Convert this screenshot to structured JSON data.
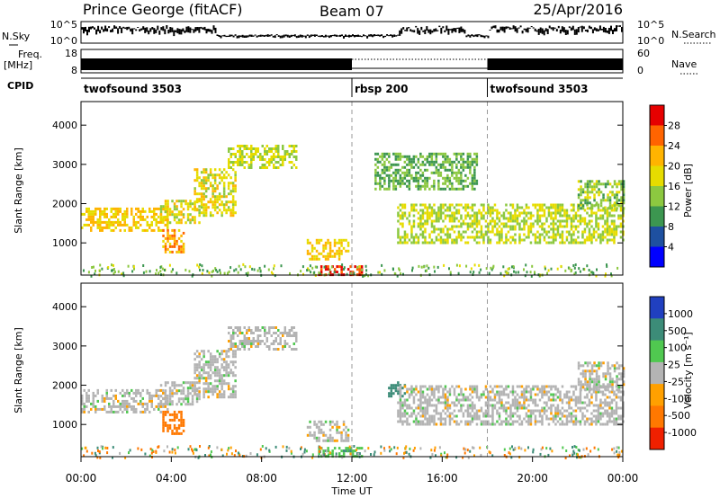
{
  "header": {
    "station": "Prince George (fitACF)",
    "beam": "Beam 07",
    "date": "25/Apr/2016"
  },
  "noise_panel": {
    "left_label": "N.Sky",
    "right_label": "N.Search",
    "left_ticks": [
      "10^5",
      "10^0"
    ],
    "right_ticks": [
      "10^5",
      "10^0"
    ]
  },
  "freq_panel": {
    "left_label_top": "Freq.",
    "left_label_unit": "[MHz]",
    "left_ticks": [
      "18",
      "8"
    ],
    "right_ticks": [
      "60",
      "0"
    ],
    "right_label": "Nave"
  },
  "cpid_panel": {
    "label": "CPID",
    "segments": [
      {
        "name": "twofsound 3503",
        "start_hour": 0,
        "end_hour": 12
      },
      {
        "name": "rbsp 200",
        "start_hour": 12,
        "end_hour": 18
      },
      {
        "name": "twofsound 3503",
        "start_hour": 18,
        "end_hour": 24
      }
    ]
  },
  "power_panel": {
    "ylabel": "Slant Range [km]",
    "colorbar_label": "Power [dB]",
    "colorbar_ticks": [
      "28",
      "24",
      "20",
      "16",
      "12",
      "8",
      "4"
    ],
    "colors": [
      "#e60000",
      "#ff6400",
      "#ffb400",
      "#e6dc00",
      "#8cc840",
      "#3c9650",
      "#1e50a0",
      "#0000ff"
    ]
  },
  "velocity_panel": {
    "ylabel": "Slant Range [km]",
    "colorbar_label": "Velocity [m s⁻¹]",
    "colorbar_ticks": [
      "1000",
      "500",
      "100",
      "25",
      "-25",
      "-100",
      "-500",
      "-1000"
    ],
    "colors": [
      "#2040c0",
      "#3c8c78",
      "#50c850",
      "#b4b4b4",
      "#ffa000",
      "#ff7800",
      "#f02000"
    ]
  },
  "x_axis": {
    "label": "Time UT",
    "ticks": [
      "00:00",
      "04:00",
      "08:00",
      "12:00",
      "16:00",
      "20:00",
      "00:00"
    ]
  },
  "y_axis": {
    "ticks": [
      "4000",
      "3000",
      "2000",
      "1000"
    ]
  },
  "chart_data": [
    {
      "type": "heatmap",
      "title": "Prince George (fitACF) Beam 07 25/Apr/2016",
      "panel": "Power",
      "xlabel": "Time UT",
      "ylabel": "Slant Range [km]",
      "xlim_hours": [
        0,
        24
      ],
      "ylim_km": [
        180,
        4600
      ],
      "colorbar": {
        "label": "Power [dB]",
        "ticks": [
          4,
          8,
          12,
          16,
          20,
          24,
          28
        ]
      },
      "regions": [
        {
          "t0": 0.0,
          "t1": 3.8,
          "r0": 1300,
          "r1": 1900,
          "level": 18
        },
        {
          "t0": 3.5,
          "t1": 5.2,
          "r0": 1500,
          "r1": 2100,
          "level": 16
        },
        {
          "t0": 5.0,
          "t1": 6.8,
          "r0": 1700,
          "r1": 2900,
          "level": 16
        },
        {
          "t0": 6.5,
          "t1": 9.5,
          "r0": 2900,
          "r1": 3500,
          "level": 14
        },
        {
          "t0": 3.6,
          "t1": 4.5,
          "r0": 750,
          "r1": 1350,
          "level": 20
        },
        {
          "t0": 10.0,
          "t1": 11.8,
          "r0": 600,
          "r1": 1100,
          "level": 18
        },
        {
          "t0": 10.5,
          "t1": 12.4,
          "r0": 220,
          "r1": 430,
          "level": 26
        },
        {
          "t0": 13.0,
          "t1": 17.5,
          "r0": 2400,
          "r1": 3300,
          "level": 10
        },
        {
          "t0": 14.0,
          "t1": 24.0,
          "r0": 1000,
          "r1": 2000,
          "level": 14
        },
        {
          "t0": 22.0,
          "t1": 24.0,
          "r0": 1900,
          "r1": 2600,
          "level": 12
        }
      ]
    },
    {
      "type": "heatmap",
      "panel": "Velocity",
      "xlabel": "Time UT",
      "ylabel": "Slant Range [km]",
      "xlim_hours": [
        0,
        24
      ],
      "ylim_km": [
        180,
        4600
      ],
      "colorbar": {
        "label": "Velocity [m s⁻¹]",
        "ticks": [
          -1000,
          -500,
          -100,
          -25,
          25,
          100,
          500,
          1000
        ]
      },
      "regions": [
        {
          "t0": 0.0,
          "t1": 3.8,
          "r0": 1300,
          "r1": 1900,
          "velocity": 0
        },
        {
          "t0": 3.5,
          "t1": 5.2,
          "r0": 1500,
          "r1": 2100,
          "velocity": 0
        },
        {
          "t0": 5.0,
          "t1": 6.8,
          "r0": 1700,
          "r1": 2900,
          "velocity": 0
        },
        {
          "t0": 6.5,
          "t1": 9.5,
          "r0": 2900,
          "r1": 3500,
          "velocity": 0
        },
        {
          "t0": 3.6,
          "t1": 4.5,
          "r0": 750,
          "r1": 1350,
          "velocity": -300
        },
        {
          "t0": 10.0,
          "t1": 11.8,
          "r0": 600,
          "r1": 1100,
          "velocity": 0
        },
        {
          "t0": 10.5,
          "t1": 12.4,
          "r0": 220,
          "r1": 430,
          "velocity": 80
        },
        {
          "t0": 13.6,
          "t1": 14.3,
          "r0": 1700,
          "r1": 2100,
          "velocity": 150
        },
        {
          "t0": 14.0,
          "t1": 24.0,
          "r0": 1000,
          "r1": 2000,
          "velocity": 0
        },
        {
          "t0": 22.0,
          "t1": 24.0,
          "r0": 1900,
          "r1": 2600,
          "velocity": 0
        }
      ]
    }
  ]
}
